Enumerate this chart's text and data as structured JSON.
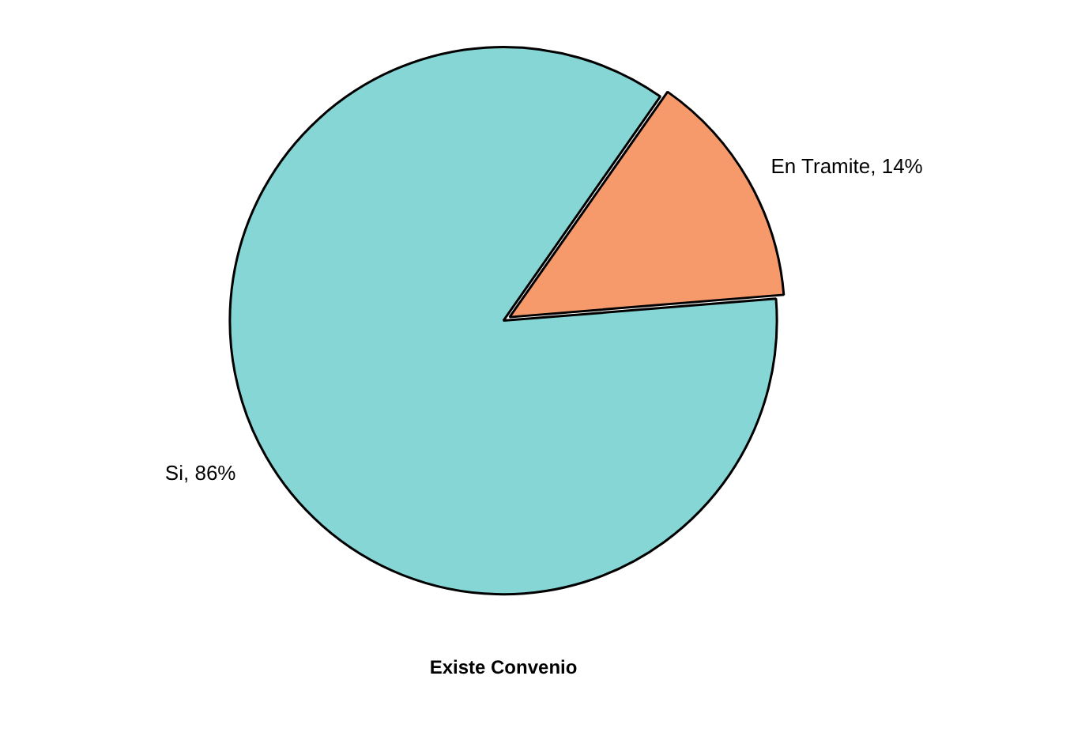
{
  "chart_data": {
    "type": "pie",
    "title": "Existe Convenio",
    "categories": [
      "En Tramite",
      "Si"
    ],
    "values": [
      14,
      86
    ],
    "colors": [
      "#f79a6b",
      "#86d6d6"
    ],
    "value_labels": [
      "14%",
      "86%"
    ],
    "legend": false
  }
}
